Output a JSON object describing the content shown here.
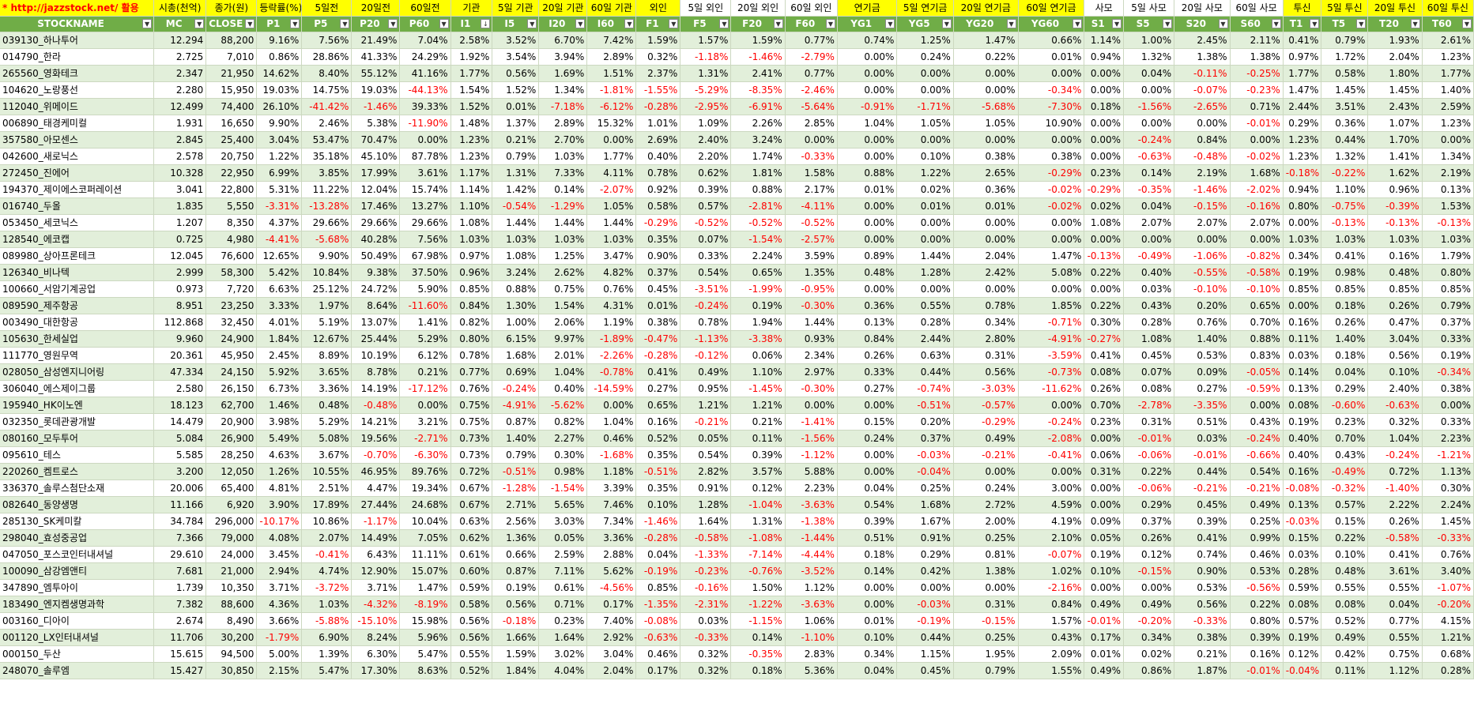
{
  "top_headers": [
    "* http://jazzstock.net/ 활용",
    "시총(천억)",
    "종가(원)",
    "등락률(%)",
    "5일전",
    "20일전",
    "60일전",
    "기관",
    "5일 기관",
    "20일 기관",
    "60일 기관",
    "외인",
    "5일 외인",
    "20일 외인",
    "60일 외인",
    "연기금",
    "5일 연기금",
    "20일 연기금",
    "60일 연기금",
    "사모",
    "5일 사모",
    "20일 사모",
    "60일 사모",
    "투신",
    "5일 투신",
    "20일 투신",
    "60일 투신"
  ],
  "columns": [
    "STOCKNAME",
    "MC",
    "CLOSE",
    "P1",
    "P5",
    "P20",
    "P60",
    "I1",
    "I5",
    "I20",
    "I60",
    "F1",
    "F5",
    "F20",
    "F60",
    "YG1",
    "YG5",
    "YG20",
    "YG60",
    "S1",
    "S5",
    "S20",
    "S60",
    "T1",
    "T5",
    "T20",
    "T60"
  ],
  "colors": {
    "header_green": "#70ad47",
    "band_green": "#e2efda",
    "header_yellow": "#ffff00",
    "negative": "#ff0000"
  },
  "rows": [
    [
      "039130_하나투어",
      "12.294",
      "88,200",
      "9.16%",
      "7.56%",
      "21.49%",
      "7.04%",
      "2.58%",
      "3.52%",
      "6.70%",
      "7.42%",
      "1.59%",
      "1.57%",
      "1.59%",
      "0.77%",
      "0.74%",
      "1.25%",
      "1.47%",
      "0.66%",
      "1.14%",
      "1.00%",
      "2.45%",
      "2.11%",
      "0.41%",
      "0.79%",
      "1.93%",
      "2.61%"
    ],
    [
      "014790_한라",
      "2.725",
      "7,010",
      "0.86%",
      "28.86%",
      "41.33%",
      "24.29%",
      "1.92%",
      "3.54%",
      "3.94%",
      "2.89%",
      "0.32%",
      "-1.18%",
      "-1.46%",
      "-2.79%",
      "0.00%",
      "0.24%",
      "0.22%",
      "0.01%",
      "0.94%",
      "1.32%",
      "1.38%",
      "1.38%",
      "0.97%",
      "1.72%",
      "2.04%",
      "1.23%"
    ],
    [
      "265560_영화테크",
      "2.347",
      "21,950",
      "14.62%",
      "8.40%",
      "55.12%",
      "41.16%",
      "1.77%",
      "0.56%",
      "1.69%",
      "1.51%",
      "2.37%",
      "1.31%",
      "2.41%",
      "0.77%",
      "0.00%",
      "0.00%",
      "0.00%",
      "0.00%",
      "0.00%",
      "0.04%",
      "-0.11%",
      "-0.25%",
      "1.77%",
      "0.58%",
      "1.80%",
      "1.77%"
    ],
    [
      "104620_노랑풍선",
      "2.280",
      "15,950",
      "19.03%",
      "14.75%",
      "19.03%",
      "-44.13%",
      "1.54%",
      "1.52%",
      "1.34%",
      "-1.81%",
      "-1.55%",
      "-5.29%",
      "-8.35%",
      "-2.46%",
      "0.00%",
      "0.00%",
      "0.00%",
      "-0.34%",
      "0.00%",
      "0.00%",
      "-0.07%",
      "-0.23%",
      "1.47%",
      "1.45%",
      "1.45%",
      "1.40%"
    ],
    [
      "112040_위메이드",
      "12.499",
      "74,400",
      "26.10%",
      "-41.42%",
      "-1.46%",
      "39.33%",
      "1.52%",
      "0.01%",
      "-7.18%",
      "-6.12%",
      "-0.28%",
      "-2.95%",
      "-6.91%",
      "-5.64%",
      "-0.91%",
      "-1.71%",
      "-5.68%",
      "-7.30%",
      "0.18%",
      "-1.56%",
      "-2.65%",
      "0.71%",
      "2.44%",
      "3.51%",
      "2.43%",
      "2.59%"
    ],
    [
      "006890_태경케미컬",
      "1.931",
      "16,650",
      "9.90%",
      "2.46%",
      "5.38%",
      "-11.90%",
      "1.48%",
      "1.37%",
      "2.89%",
      "15.32%",
      "1.01%",
      "1.09%",
      "2.26%",
      "2.85%",
      "1.04%",
      "1.05%",
      "1.05%",
      "10.90%",
      "0.00%",
      "0.00%",
      "0.00%",
      "-0.01%",
      "0.29%",
      "0.36%",
      "1.07%",
      "1.23%"
    ],
    [
      "357580_아모센스",
      "2.845",
      "25,400",
      "3.04%",
      "53.47%",
      "70.47%",
      "0.00%",
      "1.23%",
      "0.21%",
      "2.70%",
      "0.00%",
      "2.69%",
      "2.40%",
      "3.24%",
      "0.00%",
      "0.00%",
      "0.00%",
      "0.00%",
      "0.00%",
      "0.00%",
      "-0.24%",
      "0.84%",
      "0.00%",
      "1.23%",
      "0.44%",
      "1.70%",
      "0.00%"
    ],
    [
      "042600_새로닉스",
      "2.578",
      "20,750",
      "1.22%",
      "35.18%",
      "45.10%",
      "87.78%",
      "1.23%",
      "0.79%",
      "1.03%",
      "1.77%",
      "0.40%",
      "2.20%",
      "1.74%",
      "-0.33%",
      "0.00%",
      "0.10%",
      "0.38%",
      "0.38%",
      "0.00%",
      "-0.63%",
      "-0.48%",
      "-0.02%",
      "1.23%",
      "1.32%",
      "1.41%",
      "1.34%"
    ],
    [
      "272450_진에어",
      "10.328",
      "22,950",
      "6.99%",
      "3.85%",
      "17.99%",
      "3.61%",
      "1.17%",
      "1.31%",
      "7.33%",
      "4.11%",
      "0.78%",
      "0.62%",
      "1.81%",
      "1.58%",
      "0.88%",
      "1.22%",
      "2.65%",
      "-0.29%",
      "0.23%",
      "0.14%",
      "2.19%",
      "1.68%",
      "-0.18%",
      "-0.22%",
      "1.62%",
      "2.19%"
    ],
    [
      "194370_제이에스코퍼레이션",
      "3.041",
      "22,800",
      "5.31%",
      "11.22%",
      "12.04%",
      "15.74%",
      "1.14%",
      "1.42%",
      "0.14%",
      "-2.07%",
      "0.92%",
      "0.39%",
      "0.88%",
      "2.17%",
      "0.01%",
      "0.02%",
      "0.36%",
      "-0.02%",
      "-0.29%",
      "-0.35%",
      "-1.46%",
      "-2.02%",
      "0.94%",
      "1.10%",
      "0.96%",
      "0.13%"
    ],
    [
      "016740_두올",
      "1.835",
      "5,550",
      "-3.31%",
      "-13.28%",
      "17.46%",
      "13.27%",
      "1.10%",
      "-0.54%",
      "-1.29%",
      "1.05%",
      "0.58%",
      "0.57%",
      "-2.81%",
      "-4.11%",
      "0.00%",
      "0.01%",
      "0.01%",
      "-0.02%",
      "0.02%",
      "0.04%",
      "-0.15%",
      "-0.16%",
      "0.80%",
      "-0.75%",
      "-0.39%",
      "1.53%"
    ],
    [
      "053450_세코닉스",
      "1.207",
      "8,350",
      "4.37%",
      "29.66%",
      "29.66%",
      "29.66%",
      "1.08%",
      "1.44%",
      "1.44%",
      "1.44%",
      "-0.29%",
      "-0.52%",
      "-0.52%",
      "-0.52%",
      "0.00%",
      "0.00%",
      "0.00%",
      "0.00%",
      "1.08%",
      "2.07%",
      "2.07%",
      "2.07%",
      "0.00%",
      "-0.13%",
      "-0.13%",
      "-0.13%"
    ],
    [
      "128540_에코캡",
      "0.725",
      "4,980",
      "-4.41%",
      "-5.68%",
      "40.28%",
      "7.56%",
      "1.03%",
      "1.03%",
      "1.03%",
      "1.03%",
      "0.35%",
      "0.07%",
      "-1.54%",
      "-2.57%",
      "0.00%",
      "0.00%",
      "0.00%",
      "0.00%",
      "0.00%",
      "0.00%",
      "0.00%",
      "0.00%",
      "1.03%",
      "1.03%",
      "1.03%",
      "1.03%"
    ],
    [
      "089980_상아프론테크",
      "12.045",
      "76,600",
      "12.65%",
      "9.90%",
      "50.49%",
      "67.98%",
      "0.97%",
      "1.08%",
      "1.25%",
      "3.47%",
      "0.90%",
      "0.33%",
      "2.24%",
      "3.59%",
      "0.89%",
      "1.44%",
      "2.04%",
      "1.47%",
      "-0.13%",
      "-0.49%",
      "-1.06%",
      "-0.82%",
      "0.34%",
      "0.41%",
      "0.16%",
      "1.79%"
    ],
    [
      "126340_비나텍",
      "2.999",
      "58,300",
      "5.42%",
      "10.84%",
      "9.38%",
      "37.50%",
      "0.96%",
      "3.24%",
      "2.62%",
      "4.82%",
      "0.37%",
      "0.54%",
      "0.65%",
      "1.35%",
      "0.48%",
      "1.28%",
      "2.42%",
      "5.08%",
      "0.22%",
      "0.40%",
      "-0.55%",
      "-0.58%",
      "0.19%",
      "0.98%",
      "0.48%",
      "0.80%"
    ],
    [
      "100660_서암기계공업",
      "0.973",
      "7,720",
      "6.63%",
      "25.12%",
      "24.72%",
      "5.90%",
      "0.85%",
      "0.88%",
      "0.75%",
      "0.76%",
      "0.45%",
      "-3.51%",
      "-1.99%",
      "-0.95%",
      "0.00%",
      "0.00%",
      "0.00%",
      "0.00%",
      "0.00%",
      "0.03%",
      "-0.10%",
      "-0.10%",
      "0.85%",
      "0.85%",
      "0.85%",
      "0.85%"
    ],
    [
      "089590_제주항공",
      "8.951",
      "23,250",
      "3.33%",
      "1.97%",
      "8.64%",
      "-11.60%",
      "0.84%",
      "1.30%",
      "1.54%",
      "4.31%",
      "0.01%",
      "-0.24%",
      "0.19%",
      "-0.30%",
      "0.36%",
      "0.55%",
      "0.78%",
      "1.85%",
      "0.22%",
      "0.43%",
      "0.20%",
      "0.65%",
      "0.00%",
      "0.18%",
      "0.26%",
      "0.79%"
    ],
    [
      "003490_대한항공",
      "112.868",
      "32,450",
      "4.01%",
      "5.19%",
      "13.07%",
      "1.41%",
      "0.82%",
      "1.00%",
      "2.06%",
      "1.19%",
      "0.38%",
      "0.78%",
      "1.94%",
      "1.44%",
      "0.13%",
      "0.28%",
      "0.34%",
      "-0.71%",
      "0.30%",
      "0.28%",
      "0.76%",
      "0.70%",
      "0.16%",
      "0.26%",
      "0.47%",
      "0.37%"
    ],
    [
      "105630_한세실업",
      "9.960",
      "24,900",
      "1.84%",
      "12.67%",
      "25.44%",
      "5.29%",
      "0.80%",
      "6.15%",
      "9.97%",
      "-1.89%",
      "-0.47%",
      "-1.13%",
      "-3.38%",
      "0.93%",
      "0.84%",
      "2.44%",
      "2.80%",
      "-4.91%",
      "-0.27%",
      "1.08%",
      "1.40%",
      "0.88%",
      "0.11%",
      "1.40%",
      "3.04%",
      "0.33%"
    ],
    [
      "111770_영원무역",
      "20.361",
      "45,950",
      "2.45%",
      "8.89%",
      "10.19%",
      "6.12%",
      "0.78%",
      "1.68%",
      "2.01%",
      "-2.26%",
      "-0.28%",
      "-0.12%",
      "0.06%",
      "2.34%",
      "0.26%",
      "0.63%",
      "0.31%",
      "-3.59%",
      "0.41%",
      "0.45%",
      "0.53%",
      "0.83%",
      "0.03%",
      "0.18%",
      "0.56%",
      "0.19%"
    ],
    [
      "028050_삼성엔지니어링",
      "47.334",
      "24,150",
      "5.92%",
      "3.65%",
      "8.78%",
      "0.21%",
      "0.77%",
      "0.69%",
      "1.04%",
      "-0.78%",
      "0.41%",
      "0.49%",
      "1.10%",
      "2.97%",
      "0.33%",
      "0.44%",
      "0.56%",
      "-0.73%",
      "0.08%",
      "0.07%",
      "0.09%",
      "-0.05%",
      "0.14%",
      "0.04%",
      "0.10%",
      "-0.34%"
    ],
    [
      "306040_에스제이그룹",
      "2.580",
      "26,150",
      "6.73%",
      "3.36%",
      "14.19%",
      "-17.12%",
      "0.76%",
      "-0.24%",
      "0.40%",
      "-14.59%",
      "0.27%",
      "0.95%",
      "-1.45%",
      "-0.30%",
      "0.27%",
      "-0.74%",
      "-3.03%",
      "-11.62%",
      "0.26%",
      "0.08%",
      "0.27%",
      "-0.59%",
      "0.13%",
      "0.29%",
      "2.40%",
      "0.38%"
    ],
    [
      "195940_HK이노엔",
      "18.123",
      "62,700",
      "1.46%",
      "0.48%",
      "-0.48%",
      "0.00%",
      "0.75%",
      "-4.91%",
      "-5.62%",
      "0.00%",
      "0.65%",
      "1.21%",
      "1.21%",
      "0.00%",
      "0.00%",
      "-0.51%",
      "-0.57%",
      "0.00%",
      "0.70%",
      "-2.78%",
      "-3.35%",
      "0.00%",
      "0.08%",
      "-0.60%",
      "-0.63%",
      "0.00%"
    ],
    [
      "032350_롯데관광개발",
      "14.479",
      "20,900",
      "3.98%",
      "5.29%",
      "14.21%",
      "3.21%",
      "0.75%",
      "0.87%",
      "0.82%",
      "1.04%",
      "0.16%",
      "-0.21%",
      "0.21%",
      "-1.41%",
      "0.15%",
      "0.20%",
      "-0.29%",
      "-0.24%",
      "0.23%",
      "0.31%",
      "0.51%",
      "0.43%",
      "0.19%",
      "0.23%",
      "0.32%",
      "0.33%"
    ],
    [
      "080160_모두투어",
      "5.084",
      "26,900",
      "5.49%",
      "5.08%",
      "19.56%",
      "-2.71%",
      "0.73%",
      "1.40%",
      "2.27%",
      "0.46%",
      "0.52%",
      "0.05%",
      "0.11%",
      "-1.56%",
      "0.24%",
      "0.37%",
      "0.49%",
      "-2.08%",
      "0.00%",
      "-0.01%",
      "0.03%",
      "-0.24%",
      "0.40%",
      "0.70%",
      "1.04%",
      "2.23%"
    ],
    [
      "095610_테스",
      "5.585",
      "28,250",
      "4.63%",
      "3.67%",
      "-0.70%",
      "-6.30%",
      "0.73%",
      "0.79%",
      "0.30%",
      "-1.68%",
      "0.35%",
      "0.54%",
      "0.39%",
      "-1.12%",
      "0.00%",
      "-0.03%",
      "-0.21%",
      "-0.41%",
      "0.06%",
      "-0.06%",
      "-0.01%",
      "-0.66%",
      "0.40%",
      "0.43%",
      "-0.24%",
      "-1.21%"
    ],
    [
      "220260_켐트로스",
      "3.200",
      "12,050",
      "1.26%",
      "10.55%",
      "46.95%",
      "89.76%",
      "0.72%",
      "-0.51%",
      "0.98%",
      "1.18%",
      "-0.51%",
      "2.82%",
      "3.57%",
      "5.88%",
      "0.00%",
      "-0.04%",
      "0.00%",
      "0.00%",
      "0.31%",
      "0.22%",
      "0.44%",
      "0.54%",
      "0.16%",
      "-0.49%",
      "0.72%",
      "1.13%"
    ],
    [
      "336370_솔루스첨단소재",
      "20.006",
      "65,400",
      "4.81%",
      "2.51%",
      "4.47%",
      "19.34%",
      "0.67%",
      "-1.28%",
      "-1.54%",
      "3.39%",
      "0.35%",
      "0.91%",
      "0.12%",
      "2.23%",
      "0.04%",
      "0.25%",
      "0.24%",
      "3.00%",
      "0.00%",
      "-0.06%",
      "-0.21%",
      "-0.21%",
      "-0.08%",
      "-0.32%",
      "-1.40%",
      "0.30%"
    ],
    [
      "082640_동양생명",
      "11.166",
      "6,920",
      "3.90%",
      "17.89%",
      "27.44%",
      "24.68%",
      "0.67%",
      "2.71%",
      "5.65%",
      "7.46%",
      "0.10%",
      "1.28%",
      "-1.04%",
      "-3.63%",
      "0.54%",
      "1.68%",
      "2.72%",
      "4.59%",
      "0.00%",
      "0.29%",
      "0.45%",
      "0.49%",
      "0.13%",
      "0.57%",
      "2.22%",
      "2.24%"
    ],
    [
      "285130_SK케미칼",
      "34.784",
      "296,000",
      "-10.17%",
      "10.86%",
      "-1.17%",
      "10.04%",
      "0.63%",
      "2.56%",
      "3.03%",
      "7.34%",
      "-1.46%",
      "1.64%",
      "1.31%",
      "-1.38%",
      "0.39%",
      "1.67%",
      "2.00%",
      "4.19%",
      "0.09%",
      "0.37%",
      "0.39%",
      "0.25%",
      "-0.03%",
      "0.15%",
      "0.26%",
      "1.45%"
    ],
    [
      "298040_효성중공업",
      "7.366",
      "79,000",
      "4.08%",
      "2.07%",
      "14.49%",
      "7.05%",
      "0.62%",
      "1.36%",
      "0.05%",
      "3.36%",
      "-0.28%",
      "-0.58%",
      "-1.08%",
      "-1.44%",
      "0.51%",
      "0.91%",
      "0.25%",
      "2.10%",
      "0.05%",
      "0.26%",
      "0.41%",
      "0.99%",
      "0.15%",
      "0.22%",
      "-0.58%",
      "-0.33%"
    ],
    [
      "047050_포스코인터내셔널",
      "29.610",
      "24,000",
      "3.45%",
      "-0.41%",
      "6.43%",
      "11.11%",
      "0.61%",
      "0.66%",
      "2.59%",
      "2.88%",
      "0.04%",
      "-1.33%",
      "-7.14%",
      "-4.44%",
      "0.18%",
      "0.29%",
      "0.81%",
      "-0.07%",
      "0.19%",
      "0.12%",
      "0.74%",
      "0.46%",
      "0.03%",
      "0.10%",
      "0.41%",
      "0.76%"
    ],
    [
      "100090_삼강엠앤티",
      "7.681",
      "21,000",
      "2.94%",
      "4.74%",
      "12.90%",
      "15.07%",
      "0.60%",
      "0.87%",
      "7.11%",
      "5.62%",
      "-0.19%",
      "-0.23%",
      "-0.76%",
      "-3.52%",
      "0.14%",
      "0.42%",
      "1.38%",
      "1.02%",
      "0.10%",
      "-0.15%",
      "0.90%",
      "0.53%",
      "0.28%",
      "0.48%",
      "3.61%",
      "3.40%"
    ],
    [
      "347890_엠투아이",
      "1.739",
      "10,350",
      "3.71%",
      "-3.72%",
      "3.71%",
      "1.47%",
      "0.59%",
      "0.19%",
      "0.61%",
      "-4.56%",
      "0.85%",
      "-0.16%",
      "1.50%",
      "1.12%",
      "0.00%",
      "0.00%",
      "0.00%",
      "-2.16%",
      "0.00%",
      "0.00%",
      "0.53%",
      "-0.56%",
      "0.59%",
      "0.55%",
      "0.55%",
      "-1.07%"
    ],
    [
      "183490_엔지켐생명과학",
      "7.382",
      "88,600",
      "4.36%",
      "1.03%",
      "-4.32%",
      "-8.19%",
      "0.58%",
      "0.56%",
      "0.71%",
      "0.17%",
      "-1.35%",
      "-2.31%",
      "-1.22%",
      "-3.63%",
      "0.00%",
      "-0.03%",
      "0.31%",
      "0.84%",
      "0.49%",
      "0.49%",
      "0.56%",
      "0.22%",
      "0.08%",
      "0.08%",
      "0.04%",
      "-0.20%"
    ],
    [
      "003160_디아이",
      "2.674",
      "8,490",
      "3.66%",
      "-5.88%",
      "-15.10%",
      "15.98%",
      "0.56%",
      "-0.18%",
      "0.23%",
      "7.40%",
      "-0.08%",
      "0.03%",
      "-1.15%",
      "1.06%",
      "0.01%",
      "-0.19%",
      "-0.15%",
      "1.57%",
      "-0.01%",
      "-0.20%",
      "-0.33%",
      "0.80%",
      "0.57%",
      "0.52%",
      "0.77%",
      "4.15%"
    ],
    [
      "001120_LX인터내셔널",
      "11.706",
      "30,200",
      "-1.79%",
      "6.90%",
      "8.24%",
      "5.96%",
      "0.56%",
      "1.66%",
      "1.64%",
      "2.92%",
      "-0.63%",
      "-0.33%",
      "0.14%",
      "-1.10%",
      "0.10%",
      "0.44%",
      "0.25%",
      "0.43%",
      "0.17%",
      "0.34%",
      "0.38%",
      "0.39%",
      "0.19%",
      "0.49%",
      "0.55%",
      "1.21%"
    ],
    [
      "000150_두산",
      "15.615",
      "94,500",
      "5.00%",
      "1.39%",
      "6.30%",
      "5.47%",
      "0.55%",
      "1.59%",
      "3.02%",
      "3.04%",
      "0.46%",
      "0.32%",
      "-0.35%",
      "2.83%",
      "0.34%",
      "1.15%",
      "1.95%",
      "2.09%",
      "0.01%",
      "0.02%",
      "0.21%",
      "0.16%",
      "0.12%",
      "0.42%",
      "0.75%",
      "0.68%"
    ],
    [
      "248070_솔루엠",
      "15.427",
      "30,850",
      "2.15%",
      "5.47%",
      "17.30%",
      "8.63%",
      "0.52%",
      "1.84%",
      "4.04%",
      "2.04%",
      "0.17%",
      "0.32%",
      "0.18%",
      "5.36%",
      "0.04%",
      "0.45%",
      "0.79%",
      "1.55%",
      "0.49%",
      "0.86%",
      "1.87%",
      "-0.01%",
      "-0.04%",
      "0.11%",
      "1.12%",
      "0.28%"
    ]
  ]
}
